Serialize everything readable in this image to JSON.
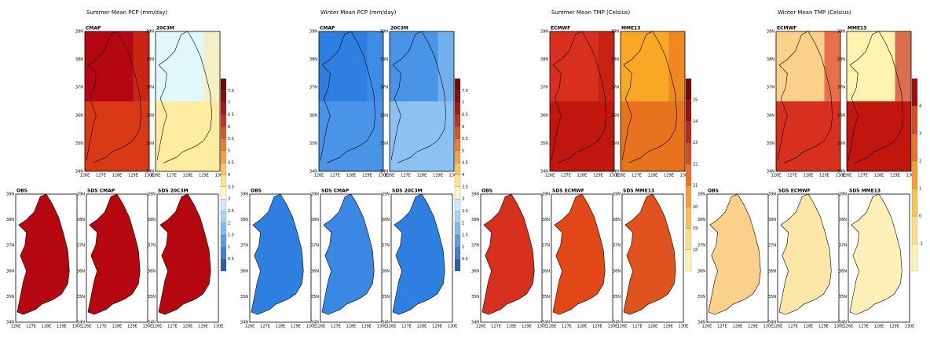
{
  "groups": [
    {
      "title": "Summer Mean PCP (mm/day)",
      "top": [
        {
          "label": "CMAP"
        },
        {
          "label": "20C3M"
        }
      ],
      "bottom": [
        {
          "label": "OBS"
        },
        {
          "label": "SDS CMAP"
        },
        {
          "label": "SDS 20C3M"
        }
      ],
      "colorbar": [
        0.5,
        1,
        1.5,
        2,
        2.5,
        3,
        3.5,
        4,
        4.5,
        5,
        5.5,
        6,
        6.5,
        7,
        7.5
      ]
    },
    {
      "title": "Winter Mean PCP (mm/day)",
      "top": [
        {
          "label": "CMAP"
        },
        {
          "label": "20C3M"
        }
      ],
      "bottom": [
        {
          "label": "OBS"
        },
        {
          "label": "SDS CMAP"
        },
        {
          "label": "SDS 20C3M"
        }
      ],
      "colorbar": [
        0.5,
        1,
        1.5,
        2,
        2.5,
        3,
        3.5,
        4,
        4.5,
        5,
        5.5,
        6,
        6.5,
        7,
        7.5
      ]
    },
    {
      "title": "Summer Mean TMP (Celsius)",
      "top": [
        {
          "label": "ECMWF"
        },
        {
          "label": "MME13"
        }
      ],
      "bottom": [
        {
          "label": "OBS"
        },
        {
          "label": "SDS ECMWF"
        },
        {
          "label": "SDS MME13"
        }
      ],
      "colorbar": [
        18,
        19,
        20,
        21,
        22,
        23,
        24,
        25
      ]
    },
    {
      "title": "Winter Mean TMP (Celsius)",
      "top": [
        {
          "label": "ECMWF"
        },
        {
          "label": "MME13"
        }
      ],
      "bottom": [
        {
          "label": "OBS"
        },
        {
          "label": "SDS ECMWF"
        },
        {
          "label": "SDS MME13"
        }
      ],
      "colorbar": [
        -1,
        0,
        1,
        2,
        3,
        4
      ]
    }
  ],
  "lat_ticks": [
    "34N",
    "35N",
    "36N",
    "37N",
    "38N",
    "39N"
  ],
  "lon_ticks": [
    "126E",
    "127E",
    "128E",
    "129E",
    "130E"
  ]
}
